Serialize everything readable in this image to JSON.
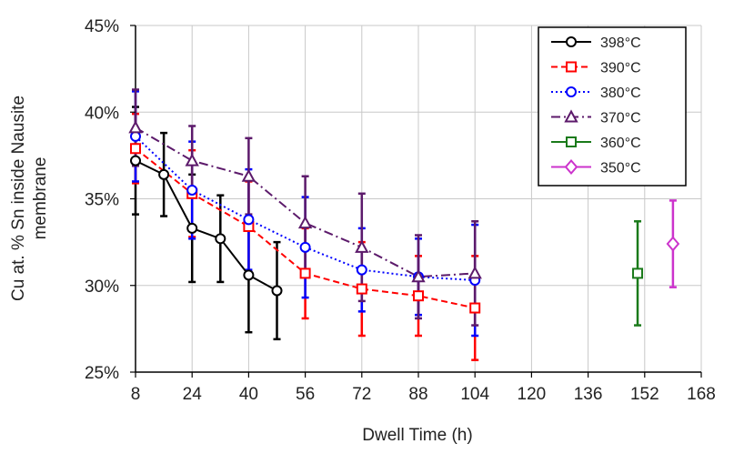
{
  "chart_data": {
    "type": "line",
    "title": "",
    "xlabel": "Dwell Time (h)",
    "ylabel_lines": [
      "Cu at. % Sn inside Nausite",
      "membrane"
    ],
    "xlim": [
      8,
      168
    ],
    "ylim": [
      25,
      45
    ],
    "x_ticks": [
      8,
      24,
      40,
      56,
      72,
      88,
      104,
      120,
      136,
      152,
      168
    ],
    "y_ticks": [
      25,
      30,
      35,
      40,
      45
    ],
    "y_tick_labels": [
      "25%",
      "30%",
      "35%",
      "40%",
      "45%"
    ],
    "grid": true,
    "legend_position": "top-right",
    "series": [
      {
        "name": "398°C",
        "color": "#000000",
        "line_style": "solid",
        "marker": "circle",
        "points": [
          {
            "x": 8,
            "y": 37.2,
            "err": 3.1
          },
          {
            "x": 16,
            "y": 36.4,
            "err": 2.4
          },
          {
            "x": 24,
            "y": 33.3,
            "err": 3.1
          },
          {
            "x": 32,
            "y": 32.7,
            "err": 2.5
          },
          {
            "x": 40,
            "y": 30.6,
            "err": 3.3
          },
          {
            "x": 48,
            "y": 29.7,
            "err": 2.8
          }
        ]
      },
      {
        "name": "390°C",
        "color": "#ff0000",
        "line_style": "dashed",
        "marker": "square",
        "points": [
          {
            "x": 8,
            "y": 37.9,
            "err": 2.0
          },
          {
            "x": 24,
            "y": 35.3,
            "err": 2.5
          },
          {
            "x": 40,
            "y": 33.4,
            "err": 2.6
          },
          {
            "x": 56,
            "y": 30.7,
            "err": 2.6
          },
          {
            "x": 72,
            "y": 29.8,
            "err": 2.7
          },
          {
            "x": 88,
            "y": 29.4,
            "err": 2.3
          },
          {
            "x": 104,
            "y": 28.7,
            "err": 3.0
          }
        ]
      },
      {
        "name": "380°C",
        "color": "#0000ff",
        "line_style": "dotted",
        "marker": "circle",
        "points": [
          {
            "x": 8,
            "y": 38.6,
            "err": 2.6
          },
          {
            "x": 24,
            "y": 35.5,
            "err": 2.8
          },
          {
            "x": 40,
            "y": 33.8,
            "err": 2.9
          },
          {
            "x": 56,
            "y": 32.2,
            "err": 2.9
          },
          {
            "x": 72,
            "y": 30.9,
            "err": 2.4
          },
          {
            "x": 88,
            "y": 30.5,
            "err": 2.2
          },
          {
            "x": 104,
            "y": 30.3,
            "err": 3.2
          }
        ]
      },
      {
        "name": "370°C",
        "color": "#5c1a6b",
        "line_style": "dashdot",
        "marker": "triangle",
        "points": [
          {
            "x": 8,
            "y": 39.1,
            "err": 2.2
          },
          {
            "x": 24,
            "y": 37.2,
            "err": 2.0
          },
          {
            "x": 40,
            "y": 36.3,
            "err": 2.2
          },
          {
            "x": 56,
            "y": 33.6,
            "err": 2.7
          },
          {
            "x": 72,
            "y": 32.2,
            "err": 3.1
          },
          {
            "x": 88,
            "y": 30.5,
            "err": 2.4
          },
          {
            "x": 104,
            "y": 30.7,
            "err": 3.0
          }
        ]
      },
      {
        "name": "360°C",
        "color": "#1a7a1a",
        "line_style": "none",
        "marker": "square",
        "points": [
          {
            "x": 150,
            "y": 30.7,
            "err": 3.0
          }
        ]
      },
      {
        "name": "350°C",
        "color": "#cc33cc",
        "line_style": "none",
        "marker": "diamond",
        "points": [
          {
            "x": 160,
            "y": 32.4,
            "err": 2.5
          }
        ]
      }
    ]
  }
}
